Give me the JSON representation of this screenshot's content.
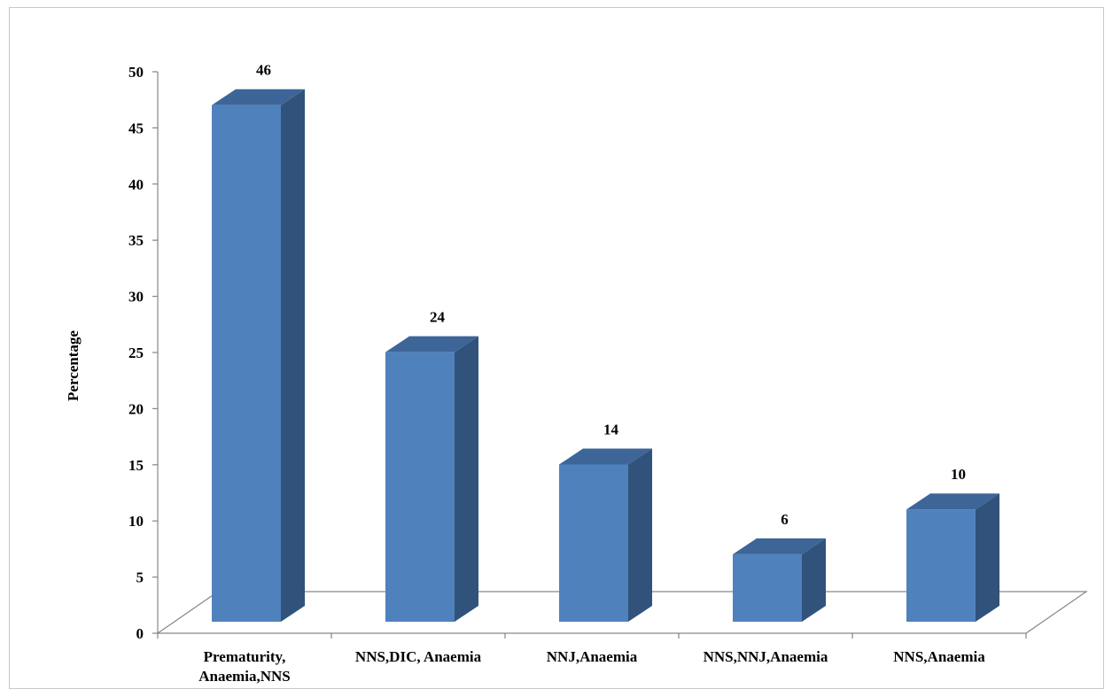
{
  "chart_data": {
    "type": "bar",
    "style": "3d-column",
    "categories": [
      [
        "Prematurity,",
        "Anaemia,NNS"
      ],
      [
        "NNS,DIC, Anaemia"
      ],
      [
        "NNJ,Anaemia"
      ],
      [
        "NNS,NNJ,Anaemia"
      ],
      [
        "NNS,Anaemia"
      ]
    ],
    "values": [
      46,
      24,
      14,
      6,
      10
    ],
    "data_labels": [
      "46",
      "24",
      "14",
      "6",
      "10"
    ],
    "ylabel": "Percentage",
    "xlabel": "",
    "title": "",
    "ylim": [
      0,
      50
    ],
    "yticks": [
      "0",
      "5",
      "10",
      "15",
      "20",
      "25",
      "30",
      "35",
      "40",
      "45",
      "50"
    ],
    "grid": false,
    "legend": "none",
    "colors": {
      "bar_front": "#4f81bd",
      "bar_side": "#31527b",
      "bar_top": "#3d6598",
      "axis": "#868686"
    }
  }
}
